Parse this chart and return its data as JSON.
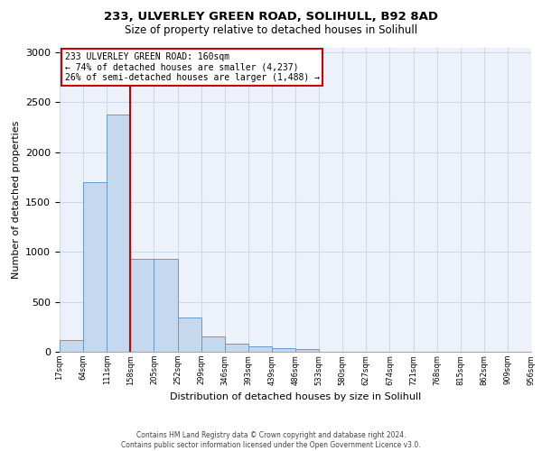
{
  "title_line1": "233, ULVERLEY GREEN ROAD, SOLIHULL, B92 8AD",
  "title_line2": "Size of property relative to detached houses in Solihull",
  "xlabel": "Distribution of detached houses by size in Solihull",
  "ylabel": "Number of detached properties",
  "bar_values": [
    115,
    1700,
    2380,
    930,
    930,
    345,
    150,
    80,
    55,
    35,
    30,
    0,
    0,
    0,
    0,
    0,
    0,
    0,
    0,
    0
  ],
  "bar_labels": [
    "17sqm",
    "64sqm",
    "111sqm",
    "158sqm",
    "205sqm",
    "252sqm",
    "299sqm",
    "346sqm",
    "393sqm",
    "439sqm",
    "486sqm",
    "533sqm",
    "580sqm",
    "627sqm",
    "674sqm",
    "721sqm",
    "768sqm",
    "815sqm",
    "862sqm",
    "909sqm",
    "956sqm"
  ],
  "bar_color": "#c5d8ee",
  "bar_edge_color": "#6699cc",
  "annotation_line1": "233 ULVERLEY GREEN ROAD: 160sqm",
  "annotation_line2": "← 74% of detached houses are smaller (4,237)",
  "annotation_line3": "26% of semi-detached houses are larger (1,488) →",
  "annotation_box_color": "#ffffff",
  "annotation_border_color": "#cc0000",
  "vline_color": "#cc0000",
  "ylim": [
    0,
    3050
  ],
  "yticks": [
    0,
    500,
    1000,
    1500,
    2000,
    2500,
    3000
  ],
  "grid_color": "#d0d8e8",
  "background_color": "#edf2fa",
  "footer_line1": "Contains HM Land Registry data © Crown copyright and database right 2024.",
  "footer_line2": "Contains public sector information licensed under the Open Government Licence v3.0."
}
